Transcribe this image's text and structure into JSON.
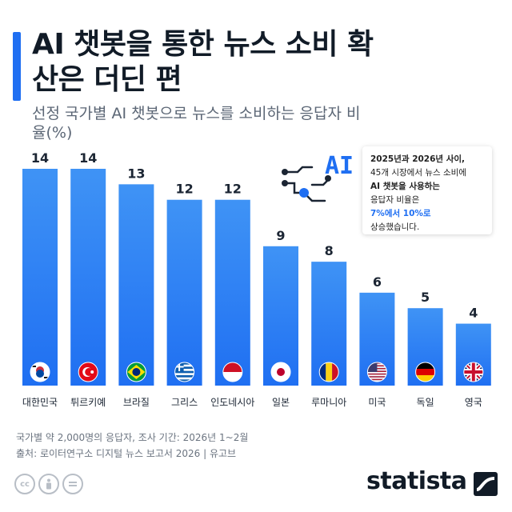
{
  "title": "AI 챗봇을 통한 뉴스 소비 확산은 더딘 편",
  "subtitle": "선정 국가별 AI 챗봇으로 뉴스를 소비하는 응답자 비율(%)",
  "info_box": {
    "line1": "2025년과 2026년 사이,",
    "line2": "45개 시장에서 뉴스 소비에",
    "line3": "AI 챗봇을 사용하는",
    "line4": "응답자 비율은",
    "line5": "7%에서 10%로",
    "line6": "상승했습니다."
  },
  "ai_graphic_label": "AI",
  "chart_data": {
    "type": "bar",
    "categories": [
      "대한민국",
      "튀르키예",
      "브라질",
      "그리스",
      "인도네시아",
      "일본",
      "루마니아",
      "미국",
      "독일",
      "영국"
    ],
    "values": [
      14,
      14,
      13,
      12,
      12,
      9,
      8,
      6,
      5,
      4
    ],
    "flags": [
      "south-korea-flag-icon",
      "turkey-flag-icon",
      "brazil-flag-icon",
      "greece-flag-icon",
      "indonesia-flag-icon",
      "japan-flag-icon",
      "romania-flag-icon",
      "usa-flag-icon",
      "germany-flag-icon",
      "uk-flag-icon"
    ],
    "ylim": [
      0,
      14
    ],
    "bar_color_top": "#3f93f5",
    "bar_color_bottom": "#1f6ff2",
    "grid": false
  },
  "footer": {
    "note": "국가별 약 2,000명의 응답자, 조사 기간: 2026년 1~2월",
    "source": "출처: 로이터연구소 디지털 뉴스 보고서 2026 | 유고브"
  },
  "logo": "statista"
}
